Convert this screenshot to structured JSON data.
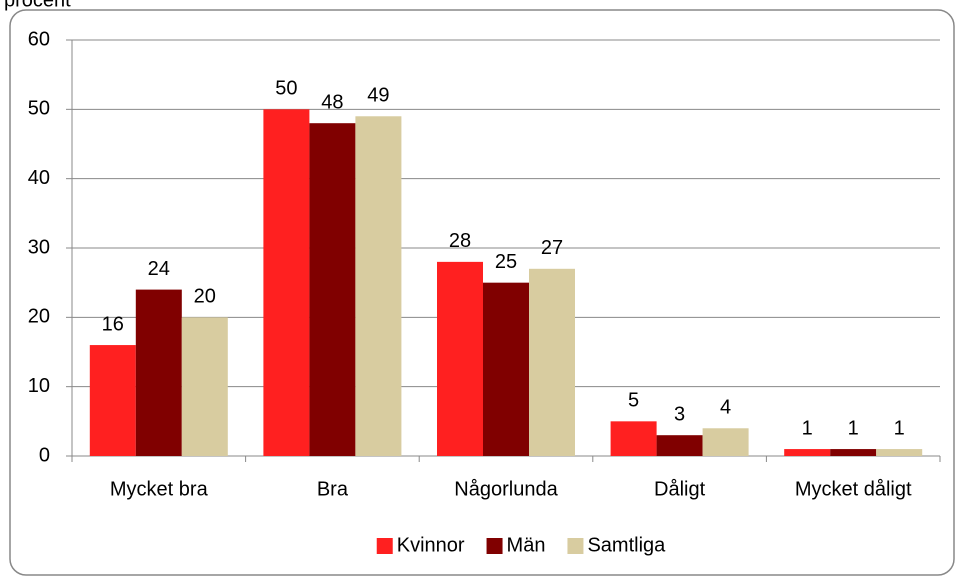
{
  "chart_data": {
    "type": "bar",
    "ylabel": "procent",
    "categories": [
      "Mycket bra",
      "Bra",
      "Någorlunda",
      "Dåligt",
      "Mycket dåligt"
    ],
    "series": [
      {
        "name": "Kvinnor",
        "color": "#ff2020",
        "values": [
          16,
          50,
          28,
          5,
          1
        ]
      },
      {
        "name": "Män",
        "color": "#800000",
        "values": [
          24,
          48,
          25,
          3,
          1
        ]
      },
      {
        "name": "Samtliga",
        "color": "#d8cca0",
        "values": [
          20,
          49,
          27,
          4,
          1
        ]
      }
    ],
    "ylim": [
      0,
      60
    ],
    "yticks": [
      0,
      10,
      20,
      30,
      40,
      50,
      60
    ],
    "grid": true,
    "legend": "bottom"
  }
}
